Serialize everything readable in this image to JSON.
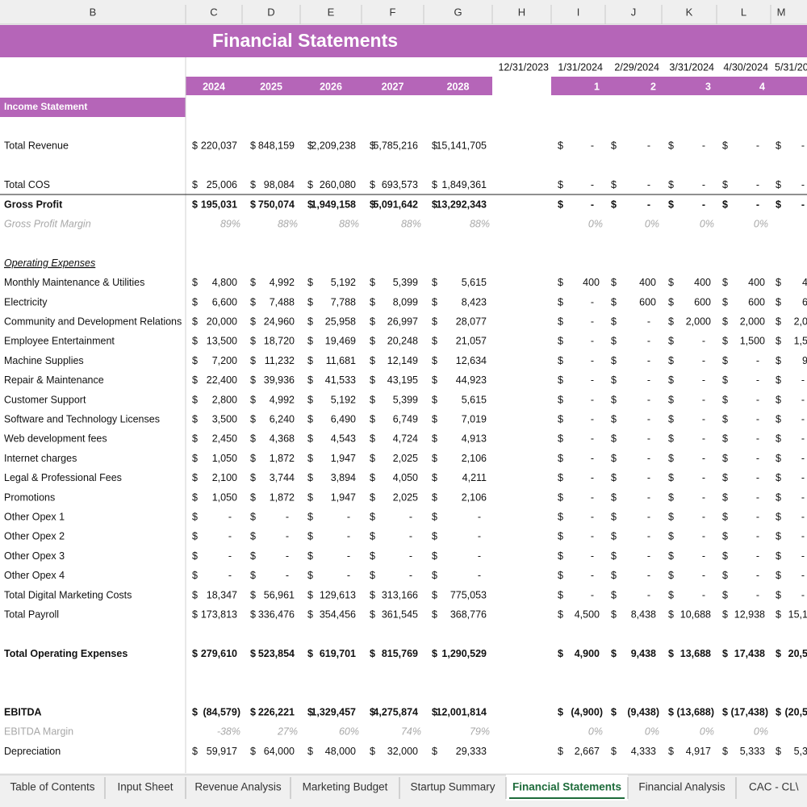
{
  "column_headers": [
    "B",
    "C",
    "D",
    "E",
    "F",
    "G",
    "H",
    "I",
    "J",
    "K",
    "L",
    "M"
  ],
  "title": "Financial Statements",
  "dates": [
    "12/31/2023",
    "1/31/2024",
    "2/29/2024",
    "3/31/2024",
    "4/30/2024",
    "5/31/20"
  ],
  "years": [
    "2024",
    "2025",
    "2026",
    "2027",
    "2028"
  ],
  "periods": [
    "1",
    "2",
    "3",
    "4"
  ],
  "section": "Income Statement",
  "rows": [
    {
      "label": "Total Revenue",
      "style": "normal",
      "unit": "$",
      "annual": [
        "220,037",
        "848,159",
        "2,209,238",
        "5,785,216",
        "15,141,705"
      ],
      "monthly": [
        "-",
        "-",
        "-",
        "-",
        "-"
      ]
    },
    {
      "label": "Total COS",
      "style": "normal",
      "unit": "$",
      "annual": [
        "25,006",
        "98,084",
        "260,080",
        "693,573",
        "1,849,361"
      ],
      "monthly": [
        "-",
        "-",
        "-",
        "-",
        "-"
      ]
    },
    {
      "label": "Gross Profit",
      "style": "bold",
      "unit": "$",
      "annual": [
        "195,031",
        "750,074",
        "1,949,158",
        "5,091,642",
        "13,292,343"
      ],
      "monthly": [
        "-",
        "-",
        "-",
        "-",
        "-"
      ]
    },
    {
      "label": "Gross Profit Margin",
      "style": "italic-gray",
      "annual": [
        "89%",
        "88%",
        "88%",
        "88%",
        "88%"
      ],
      "monthly": [
        "0%",
        "0%",
        "0%",
        "0%"
      ]
    },
    {
      "label": "Operating Expenses",
      "style": "underline-italic"
    },
    {
      "label": "Monthly Maintenance & Utilities",
      "style": "normal",
      "unit": "$",
      "annual": [
        "4,800",
        "4,992",
        "5,192",
        "5,399",
        "5,615"
      ],
      "monthly": [
        "400",
        "400",
        "400",
        "400",
        "4"
      ]
    },
    {
      "label": "Electricity",
      "style": "normal",
      "unit": "$",
      "annual": [
        "6,600",
        "7,488",
        "7,788",
        "8,099",
        "8,423"
      ],
      "monthly": [
        "-",
        "600",
        "600",
        "600",
        "6"
      ]
    },
    {
      "label": "Community and Development Relations",
      "style": "normal",
      "unit": "$",
      "annual": [
        "20,000",
        "24,960",
        "25,958",
        "26,997",
        "28,077"
      ],
      "monthly": [
        "-",
        "-",
        "2,000",
        "2,000",
        "2,0"
      ]
    },
    {
      "label": "Employee Entertainment",
      "style": "normal",
      "unit": "$",
      "annual": [
        "13,500",
        "18,720",
        "19,469",
        "20,248",
        "21,057"
      ],
      "monthly": [
        "-",
        "-",
        "-",
        "1,500",
        "1,5"
      ]
    },
    {
      "label": "Machine Supplies",
      "style": "normal",
      "unit": "$",
      "annual": [
        "7,200",
        "11,232",
        "11,681",
        "12,149",
        "12,634"
      ],
      "monthly": [
        "-",
        "-",
        "-",
        "-",
        "9"
      ]
    },
    {
      "label": "Repair & Maintenance",
      "style": "normal",
      "unit": "$",
      "annual": [
        "22,400",
        "39,936",
        "41,533",
        "43,195",
        "44,923"
      ],
      "monthly": [
        "-",
        "-",
        "-",
        "-",
        "-"
      ]
    },
    {
      "label": "Customer Support",
      "style": "normal",
      "unit": "$",
      "annual": [
        "2,800",
        "4,992",
        "5,192",
        "5,399",
        "5,615"
      ],
      "monthly": [
        "-",
        "-",
        "-",
        "-",
        "-"
      ]
    },
    {
      "label": "Software and Technology Licenses",
      "style": "normal",
      "unit": "$",
      "annual": [
        "3,500",
        "6,240",
        "6,490",
        "6,749",
        "7,019"
      ],
      "monthly": [
        "-",
        "-",
        "-",
        "-",
        "-"
      ]
    },
    {
      "label": "Web development fees",
      "style": "normal",
      "unit": "$",
      "annual": [
        "2,450",
        "4,368",
        "4,543",
        "4,724",
        "4,913"
      ],
      "monthly": [
        "-",
        "-",
        "-",
        "-",
        "-"
      ]
    },
    {
      "label": "Internet charges",
      "style": "normal",
      "unit": "$",
      "annual": [
        "1,050",
        "1,872",
        "1,947",
        "2,025",
        "2,106"
      ],
      "monthly": [
        "-",
        "-",
        "-",
        "-",
        "-"
      ]
    },
    {
      "label": "Legal & Professional Fees",
      "style": "normal",
      "unit": "$",
      "annual": [
        "2,100",
        "3,744",
        "3,894",
        "4,050",
        "4,211"
      ],
      "monthly": [
        "-",
        "-",
        "-",
        "-",
        "-"
      ]
    },
    {
      "label": "Promotions",
      "style": "normal",
      "unit": "$",
      "annual": [
        "1,050",
        "1,872",
        "1,947",
        "2,025",
        "2,106"
      ],
      "monthly": [
        "-",
        "-",
        "-",
        "-",
        "-"
      ]
    },
    {
      "label": "Other Opex 1",
      "style": "normal",
      "unit": "$",
      "annual": [
        "-",
        "-",
        "-",
        "-",
        "-"
      ],
      "monthly": [
        "-",
        "-",
        "-",
        "-",
        "-"
      ]
    },
    {
      "label": "Other Opex 2",
      "style": "normal",
      "unit": "$",
      "annual": [
        "-",
        "-",
        "-",
        "-",
        "-"
      ],
      "monthly": [
        "-",
        "-",
        "-",
        "-",
        "-"
      ]
    },
    {
      "label": "Other Opex 3",
      "style": "normal",
      "unit": "$",
      "annual": [
        "-",
        "-",
        "-",
        "-",
        "-"
      ],
      "monthly": [
        "-",
        "-",
        "-",
        "-",
        "-"
      ]
    },
    {
      "label": "Other Opex 4",
      "style": "normal",
      "unit": "$",
      "annual": [
        "-",
        "-",
        "-",
        "-",
        "-"
      ],
      "monthly": [
        "-",
        "-",
        "-",
        "-",
        "-"
      ]
    },
    {
      "label": "Total Digital Marketing Costs",
      "style": "normal",
      "unit": "$",
      "annual": [
        "18,347",
        "56,961",
        "129,613",
        "313,166",
        "775,053"
      ],
      "monthly": [
        "-",
        "-",
        "-",
        "-",
        "-"
      ]
    },
    {
      "label": "Total Payroll",
      "style": "normal",
      "unit": "$",
      "annual": [
        "173,813",
        "336,476",
        "354,456",
        "361,545",
        "368,776"
      ],
      "monthly": [
        "4,500",
        "8,438",
        "10,688",
        "12,938",
        "15,1"
      ]
    },
    {
      "label": "Total Operating Expenses",
      "style": "bold",
      "unit": "$",
      "annual": [
        "279,610",
        "523,854",
        "619,701",
        "815,769",
        "1,290,529"
      ],
      "monthly": [
        "4,900",
        "9,438",
        "13,688",
        "17,438",
        "20,5"
      ]
    },
    {
      "label": "EBITDA",
      "style": "bold",
      "unit": "$",
      "annual": [
        "(84,579)",
        "226,221",
        "1,329,457",
        "4,275,874",
        "12,001,814"
      ],
      "monthly": [
        "(4,900)",
        "(9,438)",
        "(13,688)",
        "(17,438)",
        "(20,5"
      ]
    },
    {
      "label": "EBITDA Margin",
      "style": "gray",
      "annual": [
        "-38%",
        "27%",
        "60%",
        "74%",
        "79%"
      ],
      "monthly": [
        "0%",
        "0%",
        "0%",
        "0%"
      ]
    },
    {
      "label": "Depreciation",
      "style": "normal",
      "unit": "$",
      "annual": [
        "59,917",
        "64,000",
        "48,000",
        "32,000",
        "29,333"
      ],
      "monthly": [
        "2,667",
        "4,333",
        "4,917",
        "5,333",
        "5,3"
      ]
    }
  ],
  "tabs": [
    "Table of Contents",
    "Input Sheet",
    "Revenue Analysis",
    "Marketing Budget",
    "Startup Summary",
    "Financial Statements",
    "Financial Analysis",
    "CAC - CL\\"
  ]
}
